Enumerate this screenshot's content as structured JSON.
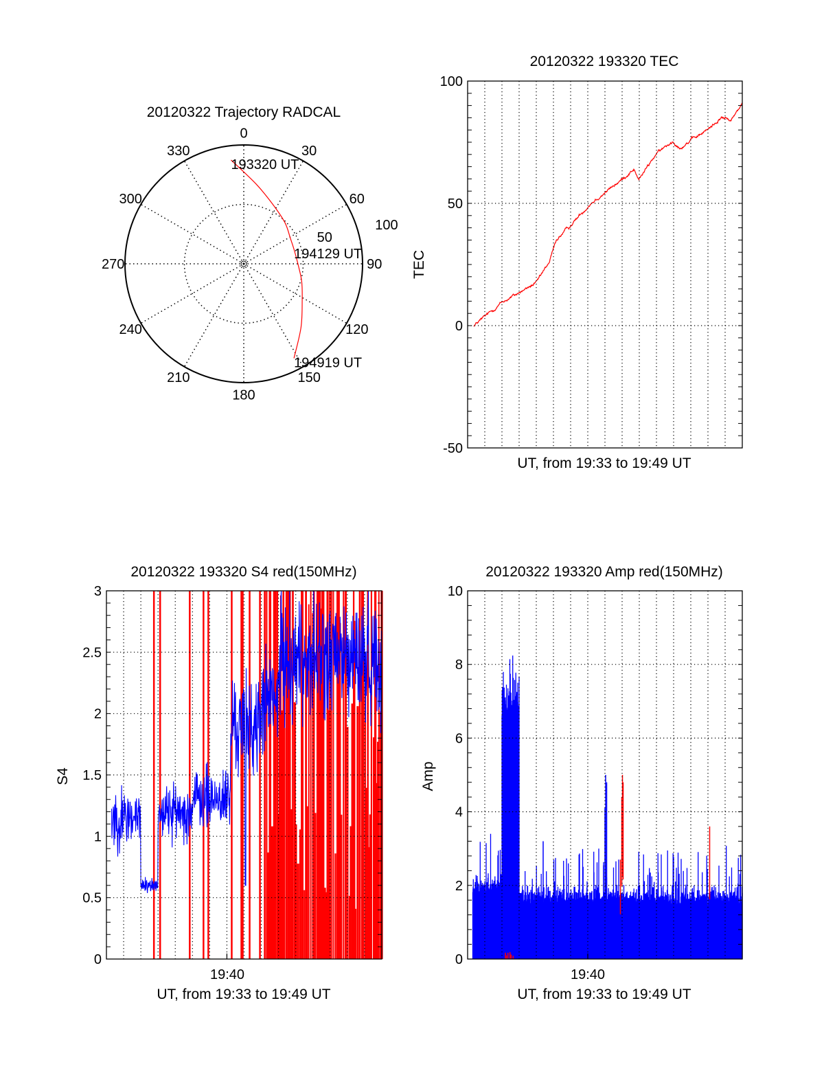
{
  "colors": {
    "axis": "#000000",
    "series_red": "#ff0000",
    "series_blue": "#0000ff"
  },
  "chart_data": [
    {
      "id": "polar",
      "type": "polar",
      "title": "20120322 Trajectory RADCAL",
      "angle_labels": [
        "0",
        "30",
        "60",
        "90",
        "120",
        "150",
        "180",
        "210",
        "240",
        "270",
        "300",
        "330"
      ],
      "radial_ticks": [
        50,
        100
      ],
      "radial_tick_labels": [
        "50",
        "100"
      ],
      "rlim": [
        0,
        100
      ],
      "trajectory": {
        "az": [
          353,
          8.7,
          25.8,
          45,
          61.4,
          74,
          92,
          107,
          122,
          138,
          152
        ],
        "r": [
          88,
          68,
          55.8,
          49,
          44.7,
          44,
          46,
          51,
          58,
          72,
          90
        ]
      },
      "time_labels": [
        {
          "text": "193320 UT",
          "az": 353,
          "r": 88
        },
        {
          "text": "194129 UT",
          "az": 74,
          "r": 44
        },
        {
          "text": "194919 UT",
          "az": 152,
          "r": 90
        }
      ]
    },
    {
      "id": "tec",
      "type": "line",
      "title": "20120322 193320 TEC",
      "xlabel": "UT, from 19:33 to 19:49 UT",
      "ylabel": "TEC",
      "xlim_minutes": [
        0,
        16
      ],
      "ylim": [
        -50,
        100
      ],
      "yticks": [
        -50,
        0,
        50,
        100
      ],
      "ytick_labels": [
        "-50",
        "0",
        "50",
        "100"
      ],
      "y_minor_step": 5,
      "x_grid_step_minutes": 1,
      "series": [
        {
          "name": "TEC",
          "color": "red",
          "x_minutes": [
            0.36,
            2.0,
            4.0,
            4.76,
            5.16,
            5.96,
            7.16,
            8.96,
            9.68,
            9.96,
            10.96,
            11.96,
            12.36,
            13.96,
            14.76,
            15.36,
            16.0
          ],
          "values": [
            0,
            9.5,
            17.4,
            26,
            35,
            40.7,
            50,
            59.5,
            64,
            59.5,
            70,
            75.5,
            72.7,
            80,
            85,
            84,
            91
          ]
        }
      ]
    },
    {
      "id": "s4",
      "type": "line",
      "title": "20120322 193320 S4 red(150MHz)",
      "xlabel": "UT, from 19:33 to 19:49 UT",
      "ylabel": "S4",
      "xtick_label": "19:40",
      "xtick_minutes": 7,
      "xlim_minutes": [
        0,
        16
      ],
      "ylim": [
        0,
        3
      ],
      "yticks": [
        0,
        0.5,
        1,
        1.5,
        2,
        2.5,
        3
      ],
      "ytick_labels": [
        "0",
        "0.5",
        "1",
        "1.5",
        "2",
        "2.5",
        "3"
      ],
      "y_minor_step": 0.1,
      "x_grid_step_minutes": 1,
      "blue_segments": [
        {
          "t0": 0.3,
          "t1": 2.0,
          "mean": 1.15,
          "spread": 0.28
        },
        {
          "t0": 2.0,
          "t1": 3.0,
          "mean": 0.6,
          "spread": 0.07
        },
        {
          "t0": 3.0,
          "t1": 5.0,
          "mean": 1.2,
          "spread": 0.25
        },
        {
          "t0": 5.0,
          "t1": 7.2,
          "mean": 1.3,
          "spread": 0.3
        },
        {
          "t0": 7.2,
          "t1": 9.0,
          "mean": 1.9,
          "spread": 0.45
        },
        {
          "t0": 9.0,
          "t1": 10.0,
          "mean": 2.1,
          "spread": 0.5
        },
        {
          "t0": 10.0,
          "t1": 16.0,
          "mean": 2.45,
          "spread": 0.55
        }
      ],
      "blue_dips": [
        {
          "t": 8.08,
          "v": 0.6
        }
      ],
      "red_spikes_full": [
        2.76,
        3.12,
        4.84,
        5.64,
        5.92,
        7.28,
        7.84,
        7.92,
        8.32,
        8.92
      ],
      "red_dense_range": [
        9.2,
        16.0
      ]
    },
    {
      "id": "amp",
      "type": "bar",
      "title": "20120322 193320 Amp red(150MHz)",
      "xlabel": "UT, from 19:33 to 19:49 UT",
      "ylabel": "Amp",
      "xtick_label": "19:40",
      "xtick_minutes": 7,
      "xlim_minutes": [
        0,
        16
      ],
      "ylim": [
        0,
        10
      ],
      "yticks": [
        0,
        2,
        4,
        6,
        8,
        10
      ],
      "ytick_labels": [
        "0",
        "2",
        "4",
        "6",
        "8",
        "10"
      ],
      "y_minor_step": 0.4,
      "x_grid_step_minutes": 1,
      "blue_segments": [
        {
          "t0": 0.3,
          "t1": 2.0,
          "mean": 1.9,
          "spread": 0.45
        },
        {
          "t0": 2.0,
          "t1": 3.0,
          "mean": 6.8,
          "spread": 1.1
        },
        {
          "t0": 3.0,
          "t1": 16.0,
          "mean": 1.6,
          "spread": 0.45
        }
      ],
      "blue_spikes": [
        {
          "t": 8.0,
          "v": 4.1
        },
        {
          "t": 8.04,
          "v": 5.0
        },
        {
          "t": 8.1,
          "v": 4.8
        },
        {
          "t": 4.4,
          "v": 3.2
        }
      ],
      "red_spikes": [
        {
          "t": 8.9,
          "v": 2.7
        },
        {
          "t": 8.98,
          "v": 4.4
        },
        {
          "t": 9.02,
          "v": 5.0
        },
        {
          "t": 9.06,
          "v": 4.8
        },
        {
          "t": 14.1,
          "v": 3.6
        }
      ],
      "red_low_range": [
        2.2,
        2.7
      ],
      "red_low_value": 0.2
    }
  ]
}
